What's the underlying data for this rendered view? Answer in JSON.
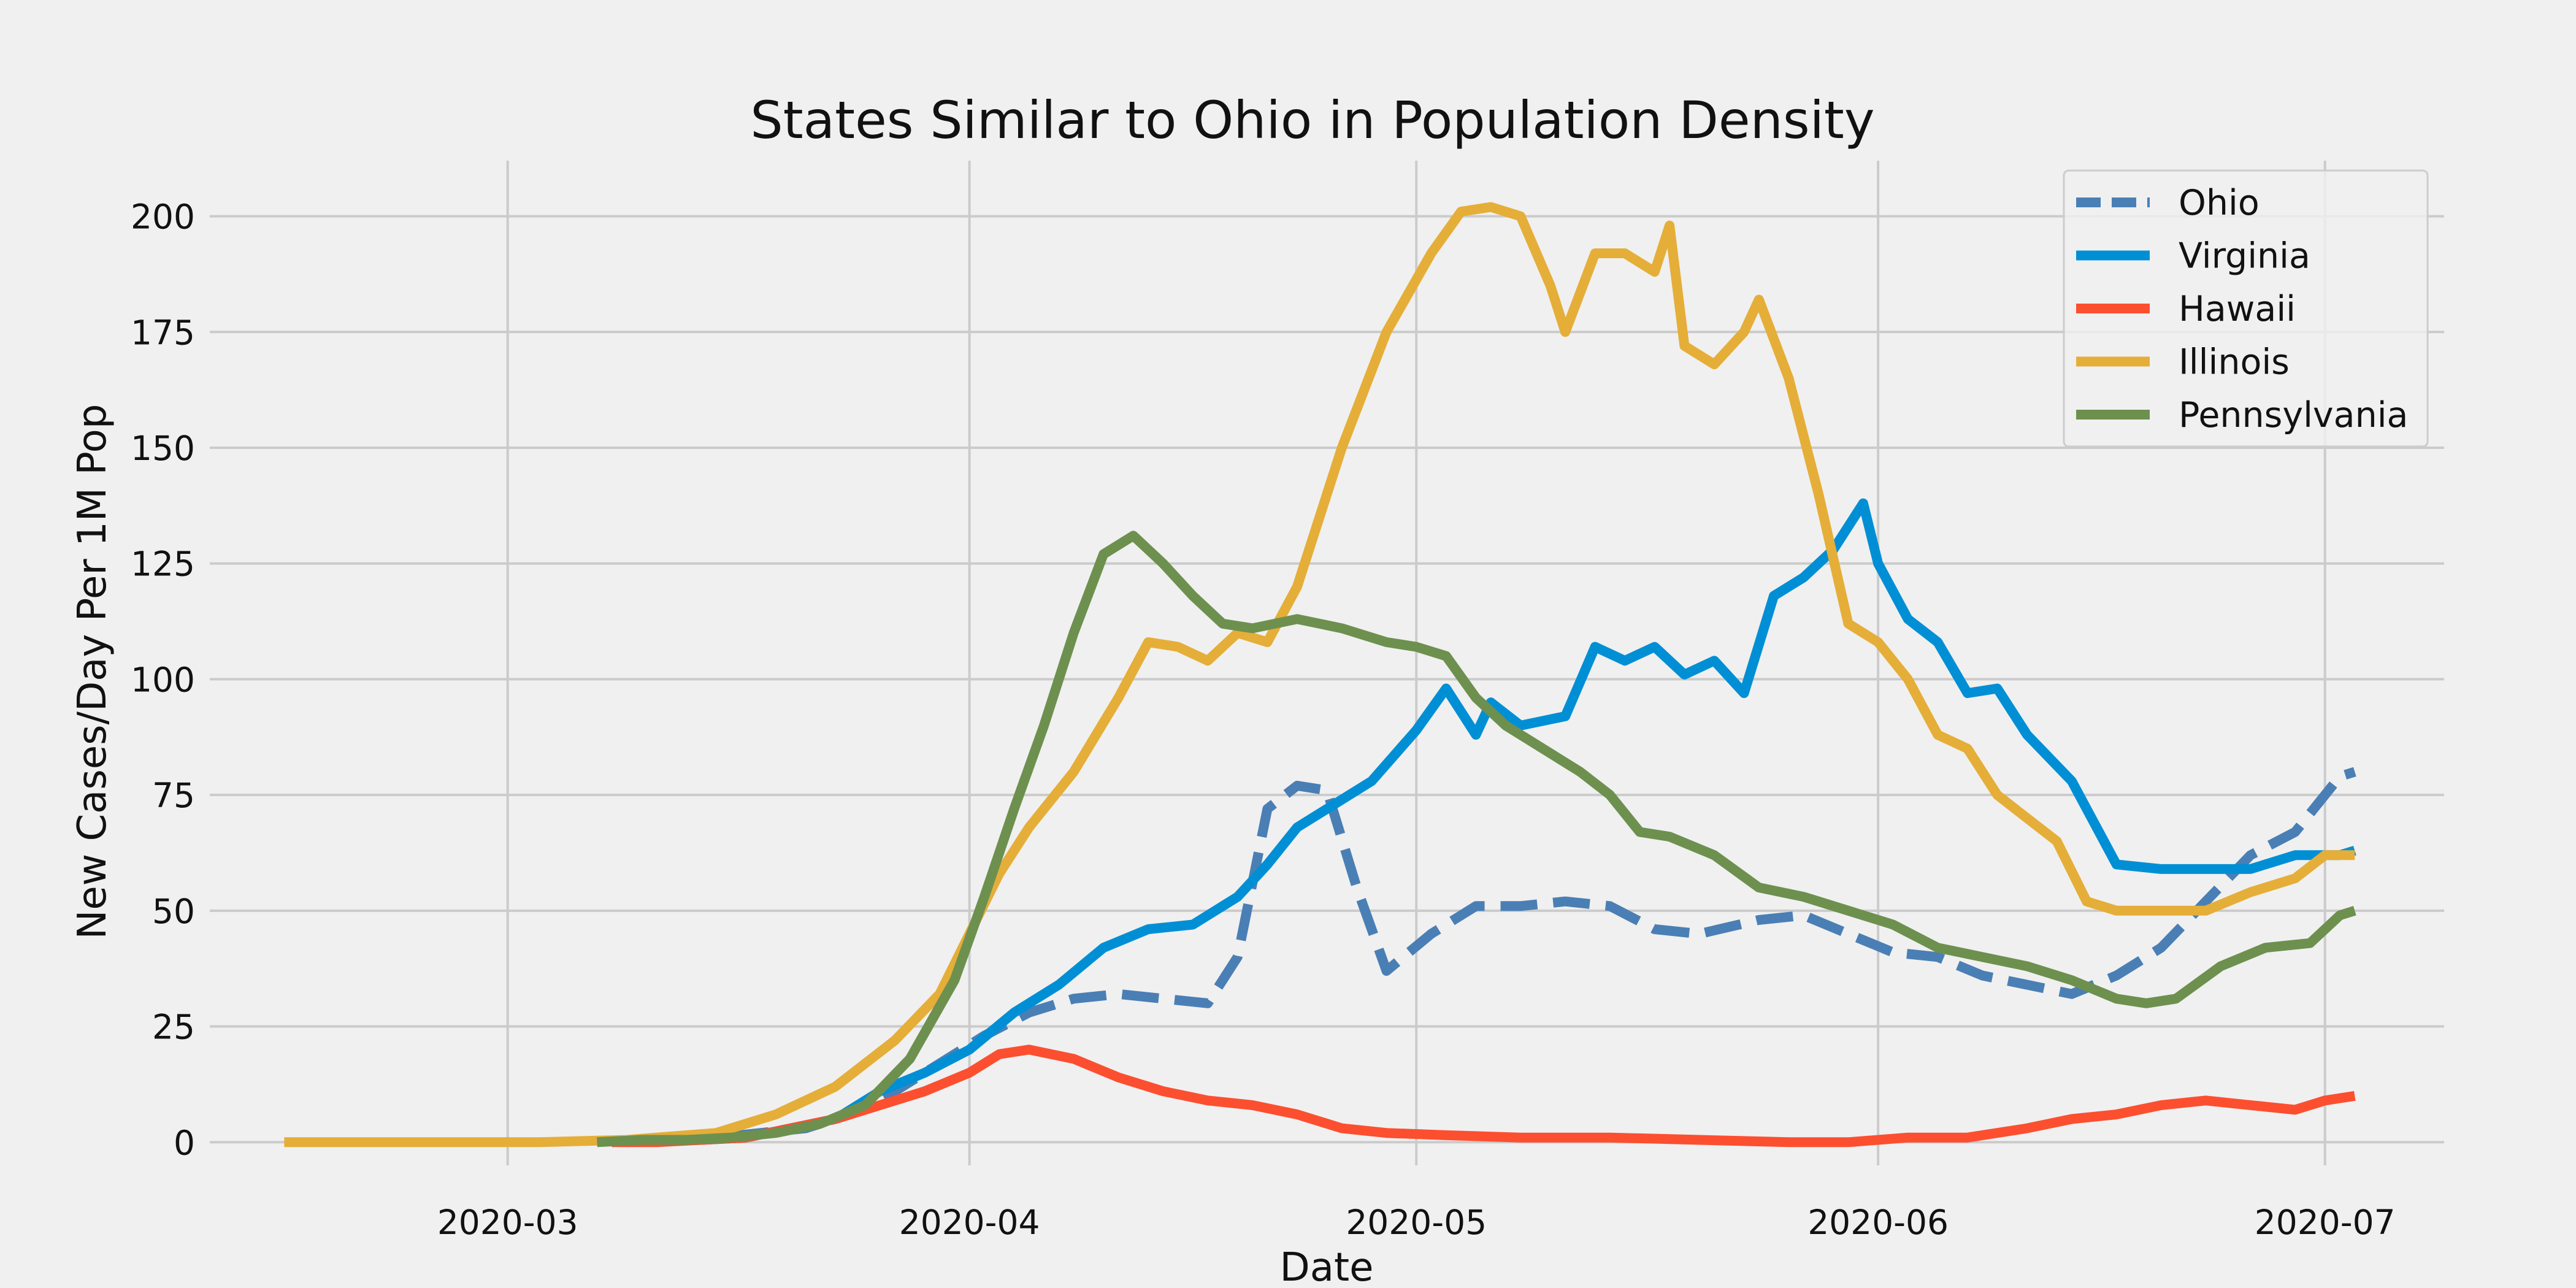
{
  "chart_data": {
    "type": "line",
    "title": "States Similar to Ohio in Population Density",
    "xlabel": "Date",
    "ylabel": "New Cases/Day Per 1M Pop",
    "xlim": [
      "2020-02-10",
      "2020-07-09"
    ],
    "ylim": [
      -5,
      212
    ],
    "xticks": [
      "2020-03",
      "2020-04",
      "2020-05",
      "2020-06",
      "2020-07"
    ],
    "yticks": [
      0,
      25,
      50,
      75,
      100,
      125,
      150,
      175,
      200
    ],
    "grid": true,
    "legend_position": "upper right",
    "series": [
      {
        "name": "Ohio",
        "color": "#4a7fb5",
        "dashed": true,
        "x": [
          "2020-03-09",
          "2020-03-12",
          "2020-03-15",
          "2020-03-18",
          "2020-03-21",
          "2020-03-24",
          "2020-03-27",
          "2020-03-30",
          "2020-04-02",
          "2020-04-05",
          "2020-04-08",
          "2020-04-11",
          "2020-04-14",
          "2020-04-17",
          "2020-04-19",
          "2020-04-21",
          "2020-04-23",
          "2020-04-25",
          "2020-04-27",
          "2020-04-29",
          "2020-05-02",
          "2020-05-05",
          "2020-05-08",
          "2020-05-11",
          "2020-05-14",
          "2020-05-17",
          "2020-05-20",
          "2020-05-24",
          "2020-05-27",
          "2020-05-30",
          "2020-06-02",
          "2020-06-05",
          "2020-06-08",
          "2020-06-11",
          "2020-06-14",
          "2020-06-17",
          "2020-06-20",
          "2020-06-23",
          "2020-06-26",
          "2020-06-29",
          "2020-07-02",
          "2020-07-03"
        ],
        "values": [
          0,
          0.5,
          1,
          2,
          3,
          6,
          11,
          17,
          23,
          28,
          31,
          32,
          31,
          30,
          40,
          72,
          77,
          76,
          55,
          37,
          45,
          51,
          51,
          52,
          51,
          46,
          45,
          48,
          49,
          45,
          41,
          40,
          36,
          34,
          32,
          36,
          42,
          52,
          62,
          67,
          79,
          80
        ]
      },
      {
        "name": "Virginia",
        "color": "#008fd5",
        "dashed": false,
        "x": [
          "2020-03-08",
          "2020-03-11",
          "2020-03-14",
          "2020-03-17",
          "2020-03-20",
          "2020-03-23",
          "2020-03-26",
          "2020-03-29",
          "2020-04-01",
          "2020-04-04",
          "2020-04-07",
          "2020-04-10",
          "2020-04-13",
          "2020-04-16",
          "2020-04-19",
          "2020-04-21",
          "2020-04-23",
          "2020-04-25",
          "2020-04-28",
          "2020-05-01",
          "2020-05-03",
          "2020-05-05",
          "2020-05-06",
          "2020-05-08",
          "2020-05-11",
          "2020-05-13",
          "2020-05-15",
          "2020-05-17",
          "2020-05-19",
          "2020-05-21",
          "2020-05-23",
          "2020-05-25",
          "2020-05-27",
          "2020-05-29",
          "2020-05-31",
          "2020-06-01",
          "2020-06-03",
          "2020-06-05",
          "2020-06-07",
          "2020-06-09",
          "2020-06-11",
          "2020-06-14",
          "2020-06-17",
          "2020-06-20",
          "2020-06-23",
          "2020-06-26",
          "2020-06-29",
          "2020-07-02",
          "2020-07-03"
        ],
        "values": [
          0,
          0.5,
          0.5,
          1,
          3,
          5,
          11,
          15,
          20,
          28,
          34,
          42,
          46,
          47,
          53,
          60,
          68,
          72,
          78,
          89,
          98,
          88,
          95,
          90,
          92,
          107,
          104,
          107,
          101,
          104,
          97,
          118,
          122,
          128,
          138,
          125,
          113,
          108,
          97,
          98,
          88,
          78,
          60,
          59,
          59,
          59,
          62,
          62,
          63
        ]
      },
      {
        "name": "Hawaii",
        "color": "#fc4f30",
        "dashed": false,
        "x": [
          "2020-03-08",
          "2020-03-11",
          "2020-03-14",
          "2020-03-17",
          "2020-03-20",
          "2020-03-23",
          "2020-03-26",
          "2020-03-29",
          "2020-04-01",
          "2020-04-03",
          "2020-04-05",
          "2020-04-08",
          "2020-04-11",
          "2020-04-14",
          "2020-04-17",
          "2020-04-20",
          "2020-04-23",
          "2020-04-26",
          "2020-04-29",
          "2020-05-03",
          "2020-05-08",
          "2020-05-14",
          "2020-05-20",
          "2020-05-26",
          "2020-05-30",
          "2020-06-03",
          "2020-06-07",
          "2020-06-11",
          "2020-06-14",
          "2020-06-17",
          "2020-06-20",
          "2020-06-23",
          "2020-06-26",
          "2020-06-29",
          "2020-07-01",
          "2020-07-03"
        ],
        "values": [
          0,
          0,
          0.5,
          1,
          3,
          5,
          8,
          11,
          15,
          19,
          20,
          18,
          14,
          11,
          9,
          8,
          6,
          3,
          2,
          1.5,
          1,
          1,
          0.5,
          0,
          0,
          1,
          1,
          3,
          5,
          6,
          8,
          9,
          8,
          7,
          9,
          10
        ]
      },
      {
        "name": "Illinois",
        "color": "#e5ae38",
        "dashed": false,
        "x": [
          "2020-02-15",
          "2020-03-03",
          "2020-03-09",
          "2020-03-15",
          "2020-03-19",
          "2020-03-23",
          "2020-03-27",
          "2020-03-30",
          "2020-04-01",
          "2020-04-03",
          "2020-04-05",
          "2020-04-08",
          "2020-04-11",
          "2020-04-13",
          "2020-04-15",
          "2020-04-17",
          "2020-04-19",
          "2020-04-21",
          "2020-04-23",
          "2020-04-26",
          "2020-04-29",
          "2020-05-02",
          "2020-05-04",
          "2020-05-06",
          "2020-05-08",
          "2020-05-10",
          "2020-05-11",
          "2020-05-13",
          "2020-05-15",
          "2020-05-17",
          "2020-05-18",
          "2020-05-19",
          "2020-05-21",
          "2020-05-23",
          "2020-05-24",
          "2020-05-26",
          "2020-05-28",
          "2020-05-30",
          "2020-06-01",
          "2020-06-03",
          "2020-06-05",
          "2020-06-07",
          "2020-06-09",
          "2020-06-11",
          "2020-06-13",
          "2020-06-15",
          "2020-06-17",
          "2020-06-20",
          "2020-06-23",
          "2020-06-26",
          "2020-06-29",
          "2020-07-01",
          "2020-07-03"
        ],
        "values": [
          0,
          0,
          0.5,
          2,
          6,
          12,
          22,
          32,
          45,
          58,
          68,
          80,
          96,
          108,
          107,
          104,
          110,
          108,
          120,
          150,
          175,
          192,
          201,
          202,
          200,
          185,
          175,
          192,
          192,
          188,
          198,
          172,
          168,
          175,
          182,
          165,
          140,
          112,
          108,
          100,
          88,
          85,
          75,
          70,
          65,
          52,
          50,
          50,
          50,
          54,
          57,
          62,
          62
        ]
      },
      {
        "name": "Pennsylvania",
        "color": "#6d904f",
        "dashed": false,
        "x": [
          "2020-03-07",
          "2020-03-10",
          "2020-03-13",
          "2020-03-16",
          "2020-03-19",
          "2020-03-22",
          "2020-03-25",
          "2020-03-28",
          "2020-03-31",
          "2020-04-02",
          "2020-04-04",
          "2020-04-06",
          "2020-04-08",
          "2020-04-10",
          "2020-04-12",
          "2020-04-14",
          "2020-04-16",
          "2020-04-18",
          "2020-04-20",
          "2020-04-23",
          "2020-04-26",
          "2020-04-29",
          "2020-05-01",
          "2020-05-03",
          "2020-05-05",
          "2020-05-07",
          "2020-05-10",
          "2020-05-12",
          "2020-05-14",
          "2020-05-16",
          "2020-05-18",
          "2020-05-21",
          "2020-05-24",
          "2020-05-27",
          "2020-05-30",
          "2020-06-02",
          "2020-06-05",
          "2020-06-08",
          "2020-06-11",
          "2020-06-14",
          "2020-06-17",
          "2020-06-19",
          "2020-06-21",
          "2020-06-24",
          "2020-06-27",
          "2020-06-30",
          "2020-07-02",
          "2020-07-03"
        ],
        "values": [
          0,
          0.5,
          0.5,
          1,
          2,
          4,
          8,
          18,
          35,
          53,
          72,
          90,
          110,
          127,
          131,
          125,
          118,
          112,
          111,
          113,
          111,
          108,
          107,
          105,
          96,
          90,
          84,
          80,
          75,
          67,
          66,
          62,
          55,
          53,
          50,
          47,
          42,
          40,
          38,
          35,
          31,
          30,
          31,
          38,
          42,
          43,
          49,
          50
        ]
      }
    ]
  }
}
